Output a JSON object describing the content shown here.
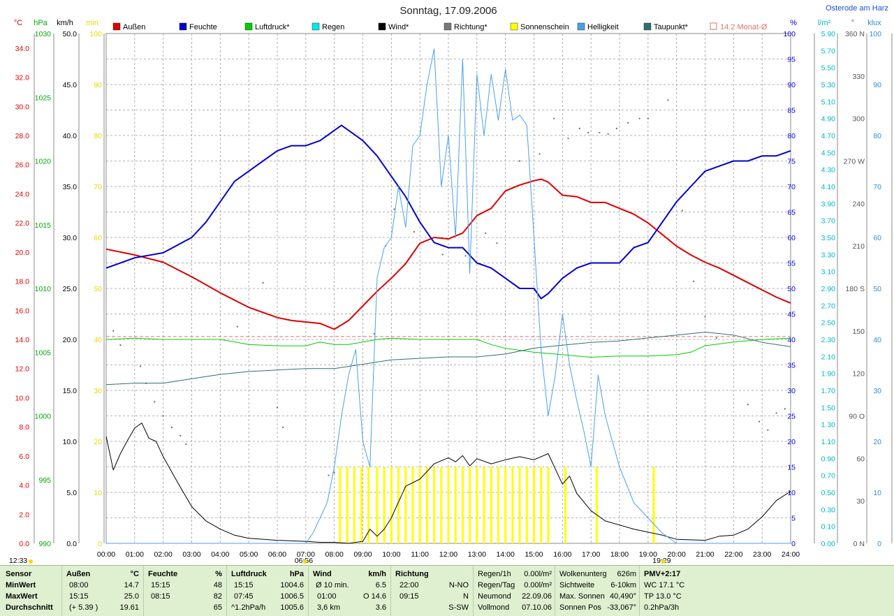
{
  "header": {
    "title": "Sonntag, 17.09.2006",
    "location": "Osterode am Harz",
    "unit_left": [
      "°C",
      "hPa",
      "km/h",
      "min"
    ],
    "unit_right": [
      "%",
      "l/m²",
      "°",
      "klux"
    ]
  },
  "legend": [
    {
      "label": "Außen",
      "color": "#dd0000",
      "kind": "box"
    },
    {
      "label": "Feuchte",
      "color": "#0000cc",
      "kind": "box"
    },
    {
      "label": "Luftdruck*",
      "color": "#00cc00",
      "kind": "box"
    },
    {
      "label": "Regen",
      "color": "#00e8e8",
      "kind": "box"
    },
    {
      "label": "Wind*",
      "color": "#000000",
      "kind": "box"
    },
    {
      "label": "Richtung*",
      "color": "#777777",
      "kind": "box"
    },
    {
      "label": "Sonnenschein",
      "color": "#ffff00",
      "kind": "box"
    },
    {
      "label": "Helligkeit",
      "color": "#4aa0e8",
      "kind": "box"
    },
    {
      "label": "Taupunkt*",
      "color": "#2f6f6f",
      "kind": "box"
    },
    {
      "label": "14.2 Monat-Ø",
      "color": "#e07070",
      "kind": "outline"
    }
  ],
  "chart_data": {
    "type": "line",
    "title": "Sonntag, 17.09.2006",
    "x_ticks": [
      "00:00",
      "01:00",
      "02:00",
      "03:00",
      "04:00",
      "05:00",
      "06:00",
      "07:00",
      "08:00",
      "09:00",
      "10:00",
      "11:00",
      "12:00",
      "13:00",
      "14:00",
      "15:00",
      "16:00",
      "17:00",
      "18:00",
      "19:00",
      "20:00",
      "21:00",
      "22:00",
      "23:00",
      "24:00"
    ],
    "xlim": [
      0,
      24
    ],
    "axes": {
      "temp_c": {
        "ticks": [
          "34.0",
          "32.0",
          "30.0",
          "28.0",
          "26.0",
          "24.0",
          "22.0",
          "20.0",
          "18.0",
          "16.0",
          "14.0",
          "12.0",
          "10.0",
          "8.0",
          "6.0",
          "4.0",
          "2.0",
          "0.0"
        ],
        "ylim": [
          0,
          35
        ],
        "color": "#dd0000"
      },
      "pressure_hpa": {
        "ticks": [
          "1030",
          "1025",
          "1020",
          "1015",
          "1010",
          "1005",
          "1000",
          "995",
          "990"
        ],
        "ylim": [
          990,
          1030
        ],
        "color": "#00aa00"
      },
      "wind_kmh": {
        "ticks": [
          "50.0",
          "45.0",
          "40.0",
          "35.0",
          "30.0",
          "25.0",
          "20.0",
          "15.0",
          "10.0",
          "5.0",
          "0.0"
        ],
        "ylim": [
          0,
          50
        ],
        "color": "#000000"
      },
      "sun_min": {
        "ticks": [
          "100",
          "90",
          "80",
          "70",
          "60",
          "50",
          "40",
          "30",
          "20",
          "10",
          "0"
        ],
        "ylim": [
          0,
          100
        ],
        "color": "#e8d800"
      },
      "humidity_pct": {
        "ticks": [
          "100",
          "95",
          "90",
          "85",
          "80",
          "75",
          "70",
          "65",
          "60",
          "55",
          "50",
          "45",
          "40",
          "35",
          "30",
          "25",
          "20",
          "15",
          "10",
          "5",
          "0"
        ],
        "ylim": [
          0,
          100
        ],
        "color": "#0000cc"
      },
      "rain_lm2": {
        "ticks": [
          "5.90",
          "5.70",
          "5.50",
          "5.30",
          "5.10",
          "4.90",
          "4.70",
          "4.50",
          "4.30",
          "4.10",
          "3.90",
          "3.70",
          "3.50",
          "3.30",
          "3.10",
          "2.90",
          "2.70",
          "2.50",
          "2.30",
          "2.10",
          "1.90",
          "1.70",
          "1.50",
          "1.30",
          "1.10",
          "0.90",
          "0.70",
          "0.50",
          "0.30",
          "0.10",
          "0.00"
        ],
        "ylim": [
          0,
          6
        ],
        "color": "#00b8c8"
      },
      "direction_deg": {
        "ticks": [
          "360 N",
          "330",
          "300",
          "270 W",
          "240",
          "210",
          "180 S",
          "150",
          "120",
          "90 O",
          "60",
          "30",
          "0 N"
        ],
        "ylim": [
          0,
          360
        ],
        "color": "#555555"
      },
      "light_klux": {
        "ticks": [
          "100",
          "90",
          "80",
          "70",
          "60",
          "50",
          "40",
          "30",
          "20",
          "10",
          "0"
        ],
        "ylim": [
          0,
          100
        ],
        "color": "#2f8fd0"
      }
    },
    "series": [
      {
        "name": "Außen",
        "color": "#dd0000",
        "axis": "temp_c",
        "x": [
          0,
          1,
          2,
          3,
          4,
          5,
          6,
          6.5,
          7,
          7.5,
          8,
          8.5,
          9,
          9.5,
          10,
          10.5,
          11,
          11.5,
          12,
          12.5,
          13,
          13.5,
          14,
          14.5,
          15,
          15.25,
          15.5,
          16,
          16.5,
          17,
          17.5,
          18,
          18.5,
          19,
          19.5,
          20,
          20.5,
          21,
          21.5,
          22,
          22.5,
          23,
          23.5,
          24
        ],
        "y": [
          20.2,
          19.8,
          19.3,
          18.3,
          17.2,
          16.2,
          15.5,
          15.3,
          15.2,
          15.1,
          14.7,
          15.3,
          16.3,
          17.3,
          18.2,
          19.2,
          20.6,
          21.0,
          20.9,
          21.3,
          22.5,
          23.0,
          24.2,
          24.6,
          24.9,
          25.0,
          24.8,
          23.9,
          23.8,
          23.4,
          23.4,
          23.0,
          22.6,
          22.0,
          21.2,
          20.4,
          19.8,
          19.3,
          18.9,
          18.4,
          17.9,
          17.4,
          16.9,
          16.5
        ]
      },
      {
        "name": "Feuchte",
        "color": "#0000cc",
        "axis": "humidity_pct",
        "x": [
          0,
          1,
          2,
          3,
          3.5,
          4,
          4.5,
          5,
          5.5,
          6,
          6.5,
          7,
          7.5,
          8,
          8.25,
          8.5,
          9,
          9.5,
          10,
          10.5,
          11,
          11.5,
          12,
          12.5,
          13,
          13.5,
          14,
          14.5,
          15,
          15.25,
          15.5,
          16,
          16.5,
          17,
          17.5,
          18,
          18.5,
          19,
          19.5,
          20,
          20.5,
          21,
          21.5,
          22,
          22.5,
          23,
          23.5,
          24
        ],
        "y": [
          54,
          56,
          57,
          60,
          63,
          67,
          71,
          73,
          75,
          77,
          78,
          78,
          79,
          81,
          82,
          81,
          79,
          76,
          72,
          68,
          63,
          59,
          58,
          58,
          55,
          54,
          52,
          50,
          50,
          48,
          49,
          52,
          54,
          55,
          55,
          55,
          58,
          59,
          63,
          67,
          70,
          73,
          74,
          75,
          75,
          76,
          76,
          77
        ]
      },
      {
        "name": "Luftdruck*",
        "color": "#00cc00",
        "axis": "pressure_hpa",
        "x": [
          0,
          1,
          2,
          3,
          4,
          5,
          6,
          7,
          7.5,
          8,
          8.5,
          9,
          9.5,
          10,
          11,
          12,
          13,
          13.5,
          14,
          15,
          16,
          17,
          18,
          19,
          20,
          20.5,
          21,
          22,
          23,
          24
        ],
        "y": [
          1006.0,
          1006.1,
          1006.0,
          1006.0,
          1006.0,
          1005.6,
          1005.5,
          1005.5,
          1005.8,
          1005.6,
          1005.6,
          1005.8,
          1006.0,
          1006.1,
          1006.0,
          1006.0,
          1006.0,
          1005.6,
          1005.3,
          1005.0,
          1004.8,
          1004.6,
          1004.7,
          1004.7,
          1004.8,
          1005.0,
          1005.5,
          1005.8,
          1006.0,
          1006.1
        ]
      },
      {
        "name": "Taupunkt*",
        "color": "#2f6f6f",
        "axis": "temp_c",
        "x": [
          0,
          1,
          2,
          3,
          4,
          5,
          6,
          7,
          8,
          9,
          10,
          11,
          12,
          13,
          14,
          15,
          16,
          17,
          18,
          19,
          20,
          21,
          22,
          23,
          24
        ],
        "y": [
          10.9,
          11.0,
          11.0,
          11.3,
          11.6,
          11.8,
          11.9,
          12.0,
          12.0,
          12.3,
          12.6,
          12.7,
          12.8,
          12.8,
          13.0,
          13.4,
          13.6,
          13.8,
          13.9,
          14.1,
          14.3,
          14.5,
          14.3,
          13.8,
          13.5
        ]
      },
      {
        "name": "Wind*",
        "color": "#000000",
        "axis": "wind_kmh",
        "x": [
          0,
          0.25,
          0.5,
          0.75,
          1,
          1.25,
          1.5,
          1.75,
          2,
          2.5,
          3,
          3.5,
          4,
          4.5,
          5,
          6,
          7,
          7.5,
          8,
          8.5,
          9,
          9.25,
          9.5,
          9.75,
          10,
          10.5,
          11,
          11.5,
          12,
          12.25,
          12.5,
          12.75,
          13,
          13.5,
          14,
          14.5,
          15,
          15.5,
          16,
          16.25,
          16.5,
          17,
          17.5,
          18,
          18.5,
          19,
          19.5,
          20,
          21,
          21.5,
          22,
          22.5,
          23,
          23.5,
          24
        ],
        "y": [
          10.5,
          7.2,
          8.8,
          10.1,
          11.3,
          11.8,
          10.3,
          10.0,
          8.5,
          6.0,
          3.6,
          2.2,
          1.4,
          0.8,
          0.5,
          0.3,
          0.2,
          0.1,
          0.1,
          0.0,
          0.2,
          1.4,
          0.7,
          1.4,
          2.5,
          5.6,
          6.3,
          7.8,
          8.4,
          8.0,
          8.6,
          7.6,
          8.3,
          7.8,
          8.2,
          8.5,
          8.2,
          8.8,
          5.8,
          6.6,
          4.9,
          3.2,
          2.2,
          1.8,
          1.4,
          1.1,
          0.8,
          0.4,
          0.3,
          0.7,
          0.8,
          1.4,
          2.6,
          4.2,
          5.1
        ]
      },
      {
        "name": "Helligkeit",
        "color": "#4aa0e8",
        "axis": "light_klux",
        "x": [
          0,
          7,
          7.25,
          7.5,
          7.75,
          8,
          8.25,
          8.5,
          8.75,
          9,
          9.25,
          9.5,
          9.75,
          10,
          10.25,
          10.5,
          10.75,
          11,
          11.25,
          11.5,
          11.75,
          12,
          12.25,
          12.5,
          12.75,
          13,
          13.25,
          13.5,
          13.75,
          14,
          14.25,
          14.5,
          14.75,
          15,
          15.25,
          15.5,
          15.75,
          16,
          16.25,
          16.5,
          16.75,
          17,
          17.25,
          17.5,
          17.75,
          18,
          18.5,
          19,
          19.5,
          20,
          24
        ],
        "y": [
          0,
          0,
          2,
          5,
          8,
          15,
          25,
          33,
          38,
          20,
          15,
          52,
          58,
          60,
          70,
          62,
          78,
          80,
          90,
          97,
          70,
          80,
          60,
          95,
          53,
          92,
          80,
          92,
          83,
          93,
          83,
          84,
          82,
          60,
          38,
          25,
          33,
          45,
          35,
          28,
          22,
          15,
          33,
          25,
          20,
          15,
          8,
          5,
          2,
          0,
          0
        ]
      }
    ],
    "sunshine_bars": [
      {
        "start": 8.2,
        "end": 9.3
      },
      {
        "start": 9.5,
        "end": 15.5
      },
      {
        "start": 16.1,
        "end": 16.2
      },
      {
        "start": 17.2,
        "end": 17.3
      },
      {
        "start": 19.2,
        "end": 19.3
      }
    ],
    "sunshine_bar_height_min": 15,
    "month_avg_temp": 14.2,
    "direction_dots": [
      {
        "x": 0.25,
        "deg": 150
      },
      {
        "x": 0.5,
        "deg": 140
      },
      {
        "x": 1.2,
        "deg": 125
      },
      {
        "x": 1.4,
        "deg": 113
      },
      {
        "x": 1.7,
        "deg": 100
      },
      {
        "x": 2.0,
        "deg": 90
      },
      {
        "x": 2.3,
        "deg": 82
      },
      {
        "x": 2.6,
        "deg": 76
      },
      {
        "x": 2.8,
        "deg": 70
      },
      {
        "x": 4.6,
        "deg": 153
      },
      {
        "x": 5.5,
        "deg": 184
      },
      {
        "x": 6.0,
        "deg": 96
      },
      {
        "x": 6.2,
        "deg": 82
      },
      {
        "x": 7.8,
        "deg": 48
      },
      {
        "x": 8.0,
        "deg": 50
      },
      {
        "x": 9.4,
        "deg": 148
      },
      {
        "x": 9.8,
        "deg": 210
      },
      {
        "x": 10.1,
        "deg": 236
      },
      {
        "x": 10.8,
        "deg": 220
      },
      {
        "x": 11.8,
        "deg": 204
      },
      {
        "x": 12.6,
        "deg": 203
      },
      {
        "x": 13.3,
        "deg": 219
      },
      {
        "x": 13.7,
        "deg": 212
      },
      {
        "x": 14.5,
        "deg": 270
      },
      {
        "x": 15.2,
        "deg": 275
      },
      {
        "x": 15.7,
        "deg": 300
      },
      {
        "x": 16.2,
        "deg": 286
      },
      {
        "x": 16.6,
        "deg": 293
      },
      {
        "x": 16.9,
        "deg": 290
      },
      {
        "x": 17.3,
        "deg": 290
      },
      {
        "x": 17.6,
        "deg": 289
      },
      {
        "x": 17.9,
        "deg": 293
      },
      {
        "x": 18.3,
        "deg": 297
      },
      {
        "x": 18.7,
        "deg": 300
      },
      {
        "x": 19.0,
        "deg": 300
      },
      {
        "x": 19.7,
        "deg": 313
      },
      {
        "x": 20.2,
        "deg": 235
      },
      {
        "x": 20.6,
        "deg": 185
      },
      {
        "x": 21.0,
        "deg": 160
      },
      {
        "x": 21.4,
        "deg": 145
      },
      {
        "x": 22.5,
        "deg": 98
      },
      {
        "x": 22.9,
        "deg": 86
      },
      {
        "x": 23.2,
        "deg": 80
      },
      {
        "x": 23.5,
        "deg": 92
      },
      {
        "x": 23.8,
        "deg": 95
      }
    ],
    "sun_markers": [
      {
        "label": "12:33",
        "x": 12.55,
        "row": "left"
      },
      {
        "label": "06:56",
        "x": 6.93,
        "row": "mid"
      },
      {
        "label": "19:29",
        "x": 19.48,
        "row": "mid"
      }
    ]
  },
  "stats_panel": {
    "row_labels": [
      "Sensor",
      "MinWert",
      "MaxWert",
      "Durchschnitt"
    ],
    "aussen": {
      "head": "Außen",
      "unit": "°C",
      "min_time": "08:00",
      "min_val": "14.7",
      "max_time": "15:15",
      "max_val": "25.0",
      "avg_note": "(+ 5.39 )",
      "avg_val": "19.61"
    },
    "feuchte": {
      "head": "Feuchte",
      "unit": "%",
      "min_time": "15:15",
      "min_val": "48",
      "max_time": "08:15",
      "max_val": "82",
      "avg_val": "65"
    },
    "luftdruck": {
      "head": "Luftdruck",
      "unit": "hPa",
      "min_time": "15:15",
      "min_val": "1004.6",
      "max_time": "07:45",
      "max_val": "1006.5",
      "avg_note": "^1.2hPa/h",
      "avg_val": "1005.6"
    },
    "wind": {
      "head": "Wind",
      "unit": "km/h",
      "r1_label": "Ø 10 min.",
      "r1_val": "6.5",
      "r2_label": "01:00",
      "r2_val": "O 14.6",
      "r3_label": "3,6 km",
      "r3_val": "3.6"
    },
    "richtung": {
      "head": "Richtung",
      "r1_label": "22:00",
      "r1_val": "N-NO",
      "r2_label": "09:15",
      "r2_val": "N",
      "r3_val": "S-SW"
    },
    "regen": {
      "r0_label": "Regen/1h",
      "r0_val": "0.00l/m²",
      "r1_label": "Regen/Tag",
      "r1_val": "0.00l/m²",
      "r2_label": "Neumond",
      "r2_val": "22.09.06",
      "r3_label": "Vollmond",
      "r3_val": "07.10.06"
    },
    "wolken": {
      "r0_label": "Wolkenunterg",
      "r0_val": "626m",
      "r1_label": "Sichtweite",
      "r1_val": "6-10km",
      "r2_label": "Max. Sonnen",
      "r2_val": "40,490°",
      "r3_label": "Sonnen Pos",
      "r3_val": "-33,067°"
    },
    "pmv": {
      "r0": "PMV+2:17",
      "r1": "WC 17.1 °C",
      "r2": "TP 13.0 °C",
      "r3": "0.2hPa/3h"
    }
  }
}
